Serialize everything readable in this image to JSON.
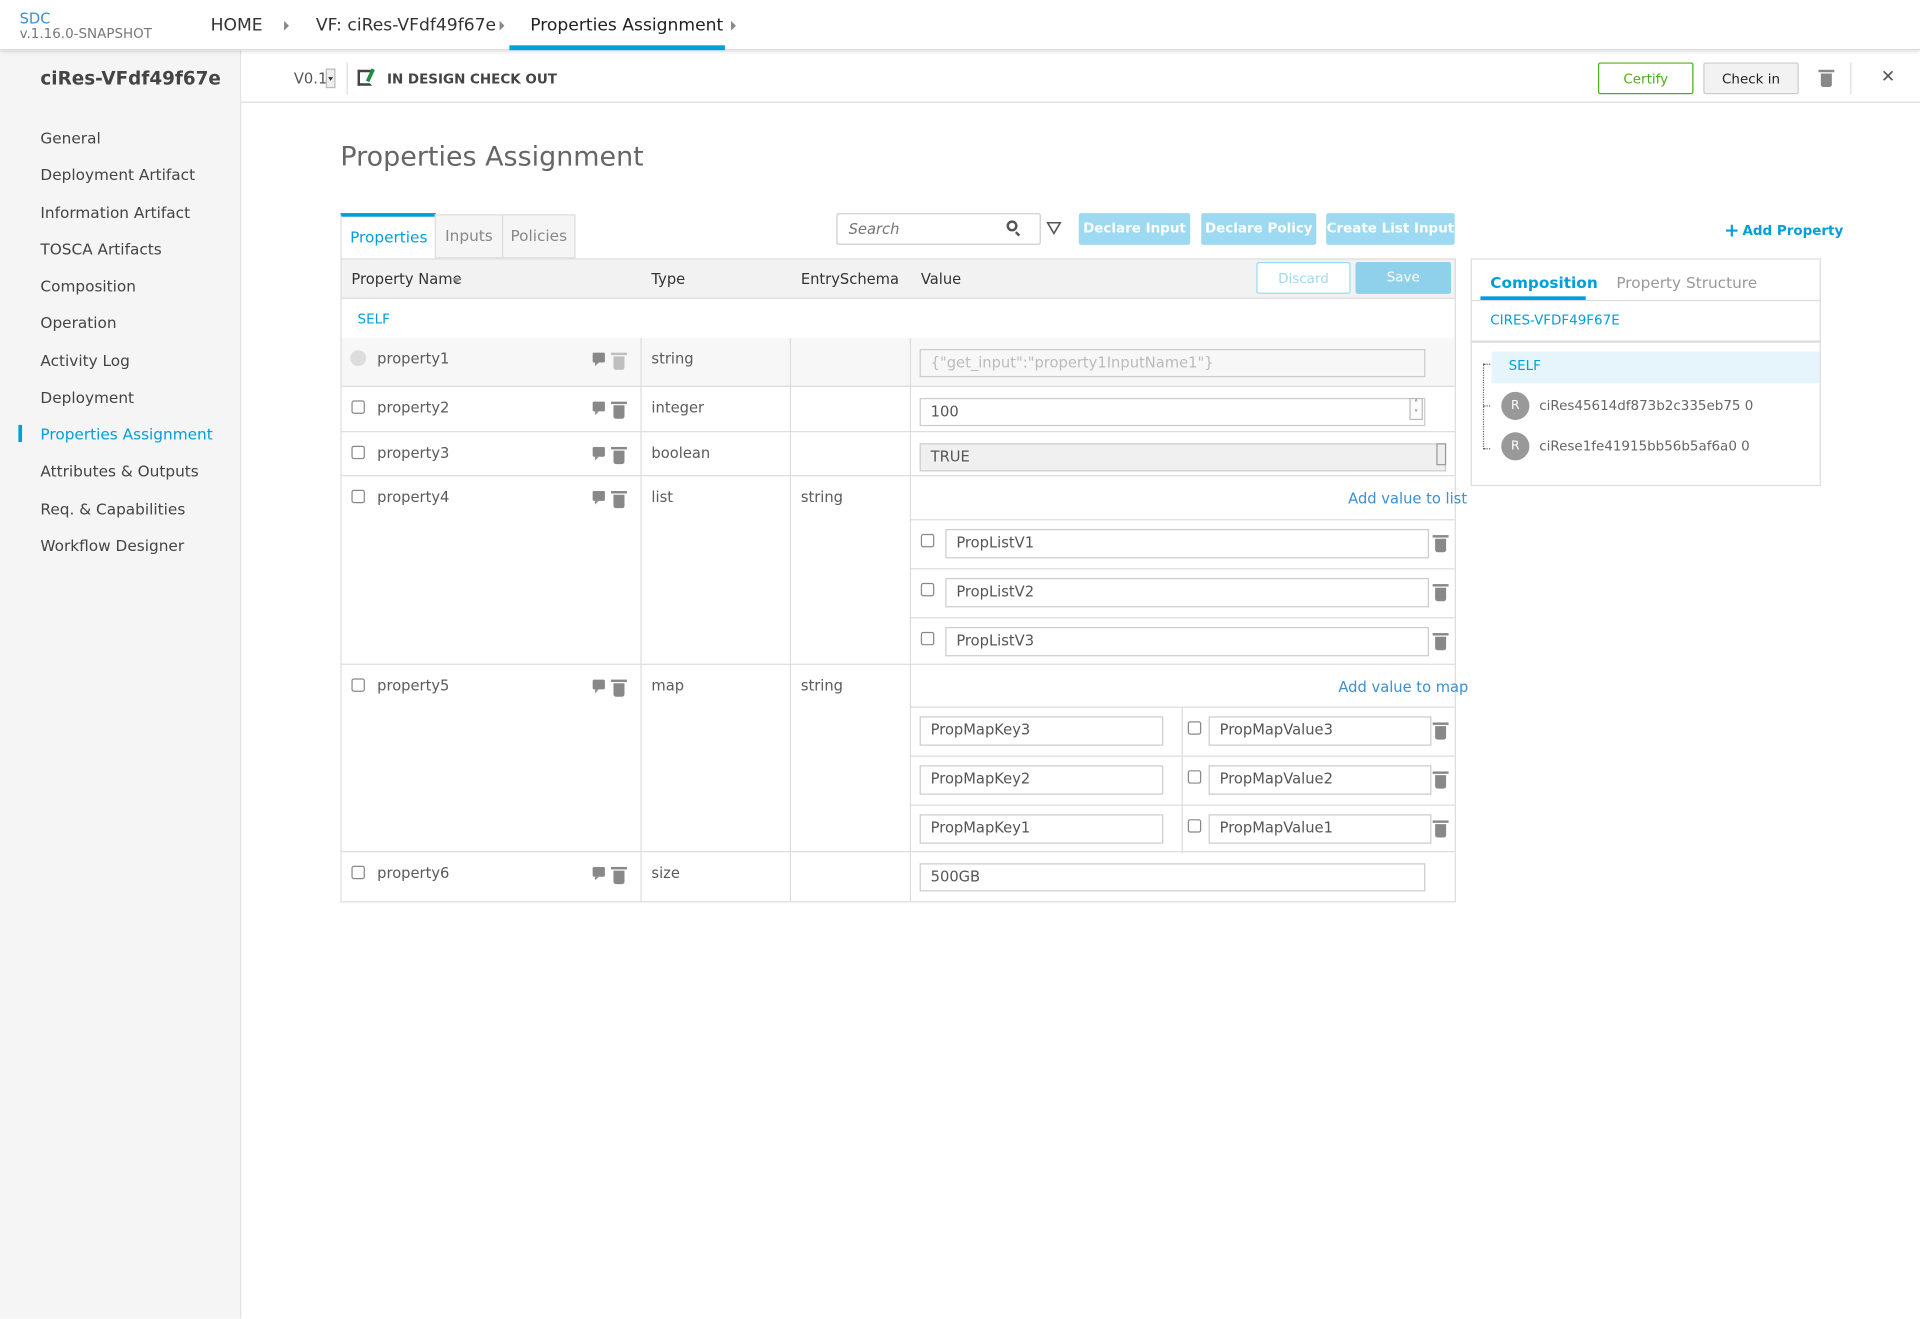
{
  "header": {
    "brand": "SDC",
    "version": "v.1.16.0-SNAPSHOT",
    "breadcrumbs": [
      "HOME",
      "VF: ciRes-VFdf49f67e",
      "Properties Assignment"
    ]
  },
  "subheader": {
    "resource_name": "ciRes-VFdf49f67e",
    "version": "V0.1",
    "status": "IN DESIGN CHECK OUT",
    "certify": "Certify",
    "check_in": "Check in"
  },
  "sidebar": {
    "items": [
      "General",
      "Deployment Artifact",
      "Information Artifact",
      "TOSCA Artifacts",
      "Composition",
      "Operation",
      "Activity Log",
      "Deployment",
      "Properties Assignment",
      "Attributes & Outputs",
      "Req. & Capabilities",
      "Workflow Designer"
    ],
    "active": "Properties Assignment"
  },
  "main": {
    "title": "Properties Assignment",
    "tabs": [
      "Properties",
      "Inputs",
      "Policies"
    ],
    "search_placeholder": "Search",
    "actions": [
      "Declare Input",
      "Declare Policy",
      "Create List Input"
    ],
    "add_property": "Add Property",
    "table": {
      "headers": [
        "Property Name",
        "Type",
        "EntrySchema",
        "Value"
      ],
      "discard": "Discard",
      "save": "Save",
      "group": "SELF",
      "rows": [
        {
          "name": "property1",
          "type": "string",
          "schema": "",
          "value": "{\"get_input\":\"property1InputName1\"}"
        },
        {
          "name": "property2",
          "type": "integer",
          "schema": "",
          "value": "100"
        },
        {
          "name": "property3",
          "type": "boolean",
          "schema": "",
          "value": "TRUE"
        },
        {
          "name": "property4",
          "type": "list",
          "schema": "string",
          "add_label": "Add value to list",
          "items": [
            "PropListV1",
            "PropListV2",
            "PropListV3"
          ]
        },
        {
          "name": "property5",
          "type": "map",
          "schema": "string",
          "add_label": "Add value to map",
          "entries": [
            {
              "key": "PropMapKey3",
              "value": "PropMapValue3"
            },
            {
              "key": "PropMapKey2",
              "value": "PropMapValue2"
            },
            {
              "key": "PropMapKey1",
              "value": "PropMapValue1"
            }
          ]
        },
        {
          "name": "property6",
          "type": "size",
          "schema": "",
          "value": "500GB"
        }
      ]
    }
  },
  "panel": {
    "tabs": [
      "Composition",
      "Property Structure"
    ],
    "root": "CIRES-VFDF49F67E",
    "self": "SELF",
    "instances": [
      {
        "badge": "R",
        "name": "ciRes45614df873b2c335eb75 0"
      },
      {
        "badge": "R",
        "name": "ciRese1fe41915bb56b5af6a0 0"
      }
    ]
  },
  "colors": {
    "accent": "#009fdb",
    "certify": "#4caf1a",
    "action_button": "#9dd9f0"
  }
}
